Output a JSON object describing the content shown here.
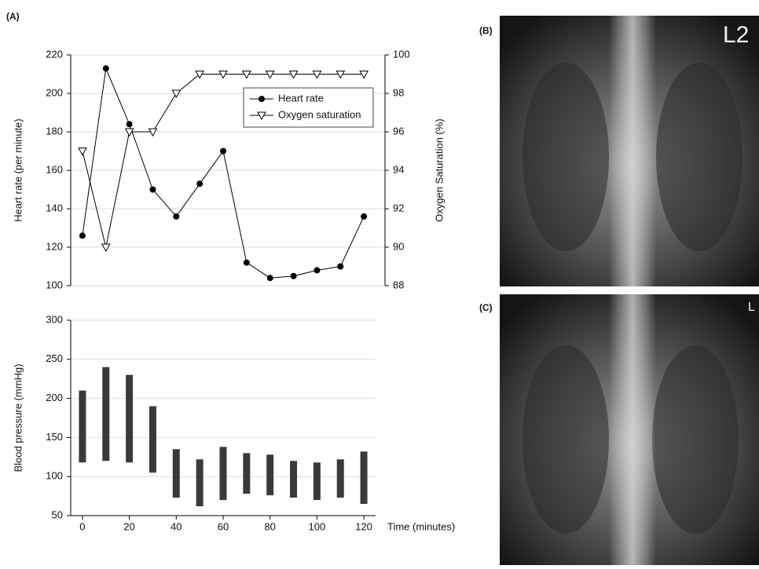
{
  "chart_data": [
    {
      "type": "line",
      "panel": "(A)",
      "x": [
        0,
        10,
        20,
        30,
        40,
        50,
        60,
        70,
        80,
        90,
        100,
        110,
        120
      ],
      "xlim": [
        -5,
        129
      ],
      "ylabel": "Heart rate (per minute)",
      "y2label": "Oxygen Saturation (%)",
      "ylim": [
        100,
        220
      ],
      "yticks": [
        100,
        120,
        140,
        160,
        180,
        200,
        220
      ],
      "y2lim": [
        88,
        100
      ],
      "y2ticks": [
        88,
        90,
        92,
        94,
        96,
        98,
        100
      ],
      "grid": true,
      "legend": "upper right",
      "series": [
        {
          "name": "Heart rate",
          "color": "#000000",
          "marker": "circle",
          "values": [
            126,
            213,
            184,
            150,
            136,
            153,
            170,
            112,
            104,
            105,
            108,
            110,
            136
          ]
        },
        {
          "name": "Oxygen saturation",
          "color": "#000000",
          "marker": "triangle-down",
          "axis": "y2",
          "values": [
            95,
            90,
            96,
            96,
            98,
            99,
            99,
            99,
            99,
            99,
            99,
            99,
            99
          ]
        }
      ]
    },
    {
      "type": "rangebar",
      "x": [
        0,
        10,
        20,
        30,
        40,
        50,
        60,
        70,
        80,
        90,
        100,
        110,
        120
      ],
      "low": [
        118,
        120,
        118,
        105,
        73,
        62,
        70,
        78,
        76,
        73,
        70,
        73,
        65
      ],
      "high": [
        210,
        240,
        230,
        190,
        135,
        122,
        138,
        130,
        128,
        120,
        118,
        122,
        132
      ],
      "color": "#3a3a3a",
      "xlim": [
        -5,
        125
      ],
      "xticks": [
        0,
        20,
        40,
        60,
        80,
        100,
        120
      ],
      "xlabel": "Time (minutes)",
      "ylabel": "Blood pressure (mmHg)",
      "ylim": [
        50,
        300
      ],
      "yticks": [
        50,
        100,
        150,
        200,
        250,
        300
      ],
      "grid": true
    }
  ],
  "images": [
    {
      "panel": "(B)",
      "text": "L2"
    },
    {
      "panel": "(C)",
      "text": "L"
    }
  ]
}
